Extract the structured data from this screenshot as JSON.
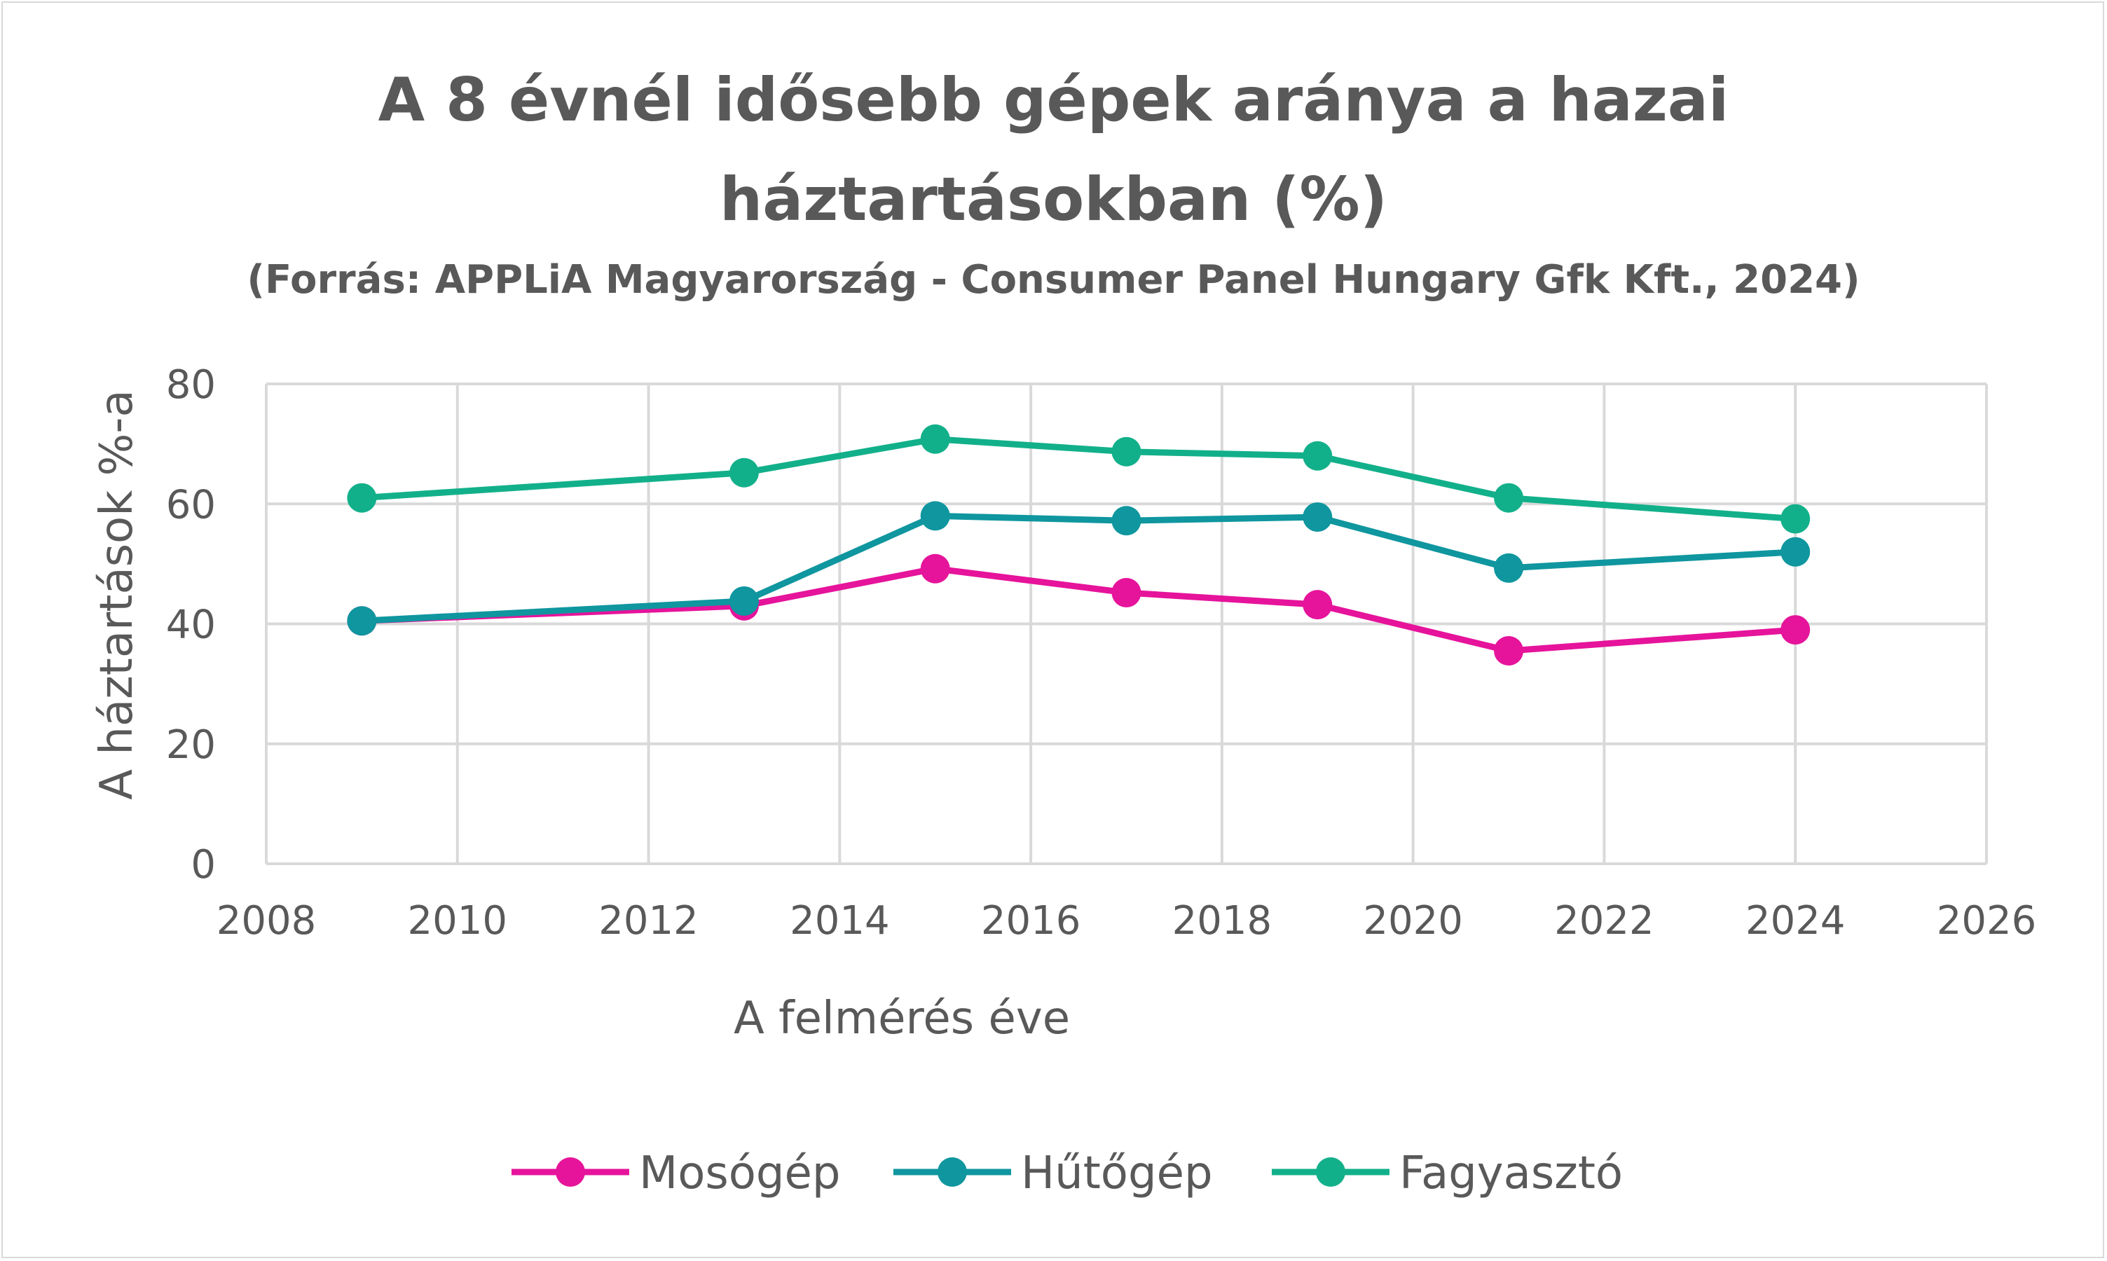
{
  "chart_data": {
    "type": "scatter",
    "title": "A 8 évnél idősebb gépek aránya a hazai háztartásokban (%)",
    "title_line1": "A 8 évnél idősebb gépek aránya a hazai",
    "title_line2": "háztartásokban (%)",
    "subtitle": "(Forrás: APPLiA Magyarország - Consumer Panel Hungary Gfk Kft., 2024)",
    "xlabel": "A felmérés éve",
    "ylabel": "A háztartások %-a",
    "xlim": [
      2008,
      2026
    ],
    "ylim": [
      0,
      80
    ],
    "xticks": [
      "2008",
      "2010",
      "2012",
      "2014",
      "2016",
      "2018",
      "2020",
      "2022",
      "2024",
      "2026"
    ],
    "yticks": [
      "0",
      "20",
      "40",
      "60",
      "80"
    ],
    "grid": true,
    "legend_position": "bottom",
    "series": [
      {
        "name": "Mosógép",
        "color": "#e6139b",
        "x": [
          2009,
          2013,
          2015,
          2017,
          2019,
          2021,
          2024
        ],
        "y": [
          40.5,
          43,
          49.2,
          45.2,
          43.2,
          35.5,
          39
        ]
      },
      {
        "name": "Hűtőgép",
        "color": "#0f969f",
        "x": [
          2009,
          2013,
          2015,
          2017,
          2019,
          2021,
          2024
        ],
        "y": [
          40.5,
          43.8,
          58,
          57.2,
          57.8,
          49.3,
          52
        ]
      },
      {
        "name": "Fagyasztó",
        "color": "#12b08a",
        "x": [
          2009,
          2013,
          2015,
          2017,
          2019,
          2021,
          2024
        ],
        "y": [
          61,
          65.2,
          70.8,
          68.7,
          68,
          61,
          57.5
        ]
      }
    ]
  }
}
